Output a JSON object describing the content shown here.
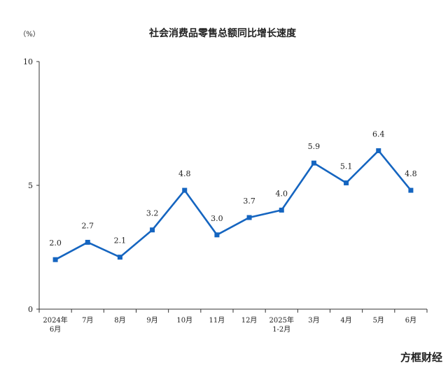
{
  "chart_data": {
    "type": "line",
    "title": "社会消费品零售总额同比增长速度",
    "unit_label": "（%）",
    "categories": [
      "2024年\n6月",
      "7月",
      "8月",
      "9月",
      "10月",
      "11月",
      "12月",
      "2025年\n1-2月",
      "3月",
      "4月",
      "5月",
      "6月"
    ],
    "values": [
      2.0,
      2.7,
      2.1,
      3.2,
      4.8,
      3.0,
      3.7,
      4.0,
      5.9,
      5.1,
      6.4,
      4.8
    ],
    "value_labels": [
      "2.0",
      "2.7",
      "2.1",
      "3.2",
      "4.8",
      "3.0",
      "3.7",
      "4.0",
      "5.9",
      "5.1",
      "6.4",
      "4.8"
    ],
    "ylim": [
      0,
      10
    ],
    "yticks": [
      "0",
      "5",
      "10"
    ],
    "xlabel": "",
    "ylabel": "",
    "grid": false,
    "legend": "none",
    "line_color": "#1565c0"
  },
  "watermark": "方框财经"
}
